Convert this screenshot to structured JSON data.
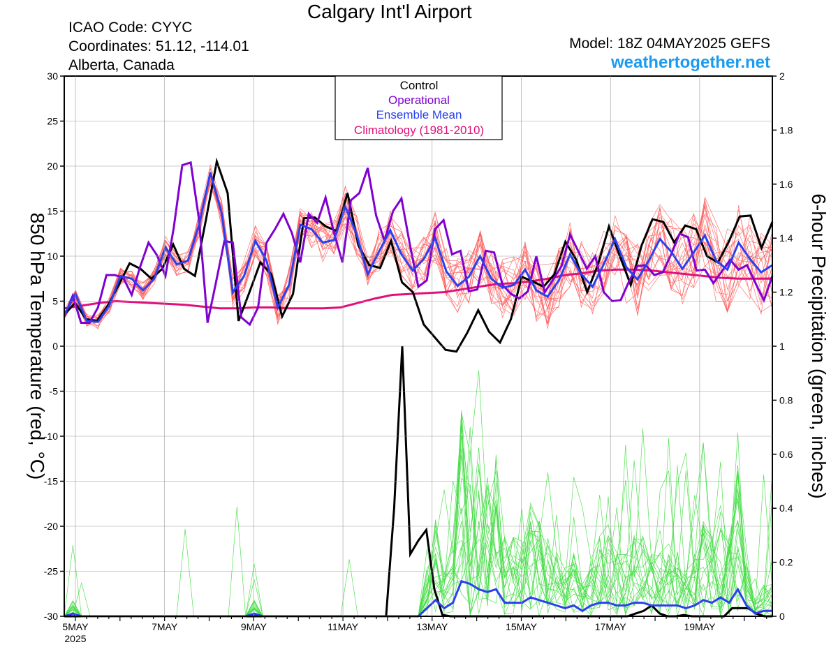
{
  "header": {
    "title": "Calgary Int'l Airport",
    "icao": "ICAO Code: CYYC",
    "coords": "Coordinates: 51.12, -114.01",
    "region": "Alberta, Canada",
    "model": "Model: 18Z 04MAY2025 GEFS",
    "site": "weathertogether.net"
  },
  "chart_data": {
    "type": "line",
    "ylabel_left": "850 hPa Temperature (red, °C)",
    "ylabel_right": "6-hour Precipitation (green, inches)",
    "ylim_left": [
      -30,
      30
    ],
    "ylim_right": [
      0,
      2
    ],
    "yticks_left": [
      "30",
      "25",
      "20",
      "15",
      "10",
      "5",
      "0",
      "-5",
      "-10",
      "-15",
      "-20",
      "-25",
      "-30"
    ],
    "yticks_right": [
      "2",
      "1.8",
      "1.6",
      "1.4",
      "1.2",
      "1",
      "0.8",
      "0.6",
      "0.4",
      "0.2",
      "0"
    ],
    "xlabels": [
      "5MAY",
      "7MAY",
      "9MAY",
      "11MAY",
      "13MAY",
      "15MAY",
      "17MAY",
      "19MAY"
    ],
    "xyear": "2025",
    "legend": [
      {
        "label": "Control",
        "color": "#000000"
      },
      {
        "label": "Operational",
        "color": "#8000d0"
      },
      {
        "label": "Ensemble Mean",
        "color": "#2a40f0"
      },
      {
        "label": "Climatology (1981-2010)",
        "color": "#e0107a"
      }
    ],
    "colors": {
      "control": "#000000",
      "operational": "#8000d0",
      "mean": "#2a40f0",
      "climo": "#e0107a",
      "members_temp": "#ff5c5c",
      "members_precip": "#44dd44"
    },
    "step_hours": 6,
    "series": {
      "control_temp": [
        3.5,
        4.8,
        3,
        2.8,
        4.5,
        6.8,
        9.2,
        8.6,
        7.5,
        8.6,
        11.3,
        8.6,
        7.8,
        14,
        20.5,
        17,
        2.8,
        6,
        9.3,
        8,
        3.3,
        5.8,
        14.2,
        14.3,
        13.3,
        12.8,
        17,
        11.2,
        9,
        8.7,
        11.7,
        7.1,
        6,
        2.4,
        1,
        -0.4,
        -0.6,
        1.5,
        4,
        1.6,
        0.4,
        3,
        7.7,
        7.2,
        6.6,
        8,
        11.6,
        9.6,
        6,
        9.1,
        13.3,
        10,
        6.8,
        11.2,
        14.1,
        13.8,
        11.5,
        13.4,
        13,
        10,
        9.3,
        11.6,
        14.4,
        14.5,
        10.9,
        13.8
      ],
      "operational_temp": [
        3.3,
        5.6,
        2.6,
        2.6,
        4.3,
        7.9,
        7.9,
        7.6,
        5.7,
        8.8,
        11.5,
        10.1,
        7.8,
        13.2,
        20.1,
        20.4,
        14,
        2.6,
        7.1,
        11.7,
        11.5,
        3.2,
        2.4,
        4.3,
        11.5,
        13,
        14.7,
        12.6,
        9.3,
        14.7,
        13.7,
        16.5,
        12.6,
        9.3,
        16.2,
        17,
        19.8,
        14.5,
        11.7,
        15,
        16.4,
        11.3,
        6.6,
        7.3,
        13,
        14,
        10.2,
        10.6,
        6.1,
        6.3,
        10.6,
        10.4,
        6.8,
        5.8,
        5.3,
        6.1,
        10,
        6,
        7.4,
        8.9,
        12.4,
        10.5,
        8.6,
        10,
        6,
        5,
        5.1,
        7.2,
        8.9,
        9,
        7.9,
        8.2,
        10.2,
        12.5,
        12.1,
        8.4,
        8.5,
        7,
        8.3,
        9.6,
        8.5,
        9,
        7,
        5.1,
        7.8
      ],
      "mean_temp": [
        3.5,
        5.8,
        2.8,
        2.7,
        4.5,
        7.8,
        7.5,
        6.2,
        7.5,
        11,
        9.1,
        9.5,
        13.5,
        19.3,
        14.8,
        6,
        7.8,
        11.7,
        9.5,
        4.3,
        6.8,
        13.5,
        13,
        11.5,
        11.8,
        15.5,
        12.5,
        8,
        10.5,
        12.9,
        10.2,
        8.4,
        9.7,
        12,
        8.3,
        6.7,
        7.7,
        10,
        7.5,
        6.5,
        6.8,
        8.5,
        6.2,
        5.5,
        7.3,
        10.2,
        8,
        6.6,
        9.1,
        11.9,
        8.8,
        7.4,
        9.5,
        11.9,
        10.5,
        8.6,
        10.4,
        12.3,
        9.5,
        8.5,
        11.5,
        9.7,
        8.2,
        9
      ],
      "climo_temp": [
        4.2,
        4.5,
        4.8,
        5,
        4.9,
        4.8,
        4.7,
        4.6,
        4.4,
        4.2,
        4.2,
        4.3,
        4.3,
        4.2,
        4.2,
        4.2,
        4.3,
        4.8,
        5.3,
        5.7,
        5.8,
        5.9,
        6,
        6.3,
        6.6,
        6.9,
        7,
        7.2,
        7.5,
        7.9,
        8.1,
        8.4,
        8.5,
        8.5,
        8.4,
        8.2,
        8,
        7.8,
        7.6,
        7.5,
        7.5,
        7.5
      ],
      "control_precip": [
        0,
        0,
        0,
        0,
        0,
        0,
        0,
        0,
        0,
        0,
        0,
        0,
        0,
        0,
        0,
        0,
        0,
        0,
        0,
        0,
        0,
        0,
        0,
        0,
        0,
        0,
        0,
        0,
        0,
        0,
        0,
        0,
        0,
        0,
        0,
        0,
        0,
        0,
        0,
        0,
        0,
        0.4,
        1,
        0.23,
        0.28,
        0.32,
        0.1,
        0.005,
        0,
        0,
        0,
        0,
        0,
        0,
        0,
        0,
        0,
        0,
        0,
        0,
        0,
        0,
        0,
        0,
        0,
        0,
        0,
        0,
        0,
        0,
        0,
        0.01,
        0.02,
        0.04,
        0.01,
        0,
        0,
        0.005,
        0,
        0,
        0,
        0,
        0,
        0.03,
        0.03,
        0.03,
        0.01,
        0,
        0
      ],
      "mean_precip": [
        0,
        0.01,
        0,
        0,
        0,
        0,
        0,
        0,
        0,
        0,
        0,
        0,
        0,
        0,
        0,
        0,
        0,
        0,
        0,
        0,
        0,
        0,
        0.01,
        0,
        0,
        0,
        0,
        0,
        0,
        0,
        0,
        0,
        0,
        0,
        0,
        0,
        0,
        0,
        0,
        0,
        0,
        0,
        0.03,
        0.06,
        0.03,
        0.05,
        0.13,
        0.12,
        0.1,
        0.09,
        0.1,
        0.05,
        0.05,
        0.05,
        0.07,
        0.06,
        0.05,
        0.04,
        0.03,
        0.04,
        0.02,
        0.04,
        0.05,
        0.05,
        0.04,
        0.04,
        0.05,
        0.05,
        0.04,
        0.04,
        0.04,
        0.04,
        0.03,
        0.04,
        0.06,
        0.05,
        0.07,
        0.05,
        0.1,
        0.04,
        0.01,
        0.02,
        0.02
      ]
    }
  }
}
